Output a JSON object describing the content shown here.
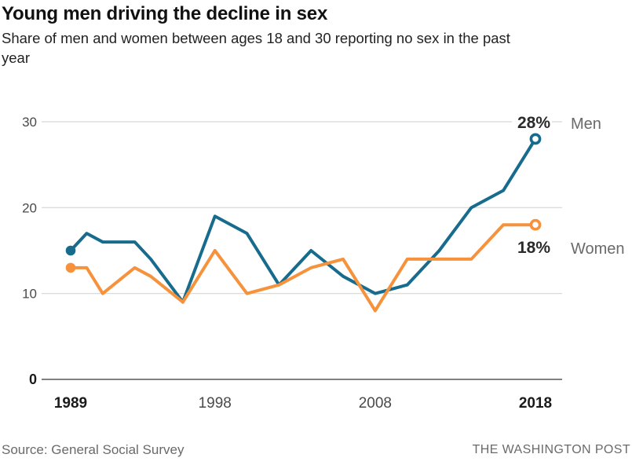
{
  "header": {
    "title": "Young men driving the decline in sex",
    "subtitle_line1": "Share of men and women between ages 18 and 30 reporting no sex in the past",
    "subtitle_line2": "year"
  },
  "footer": {
    "source": "Source: General Social Survey",
    "credit": "THE WASHINGTON POST"
  },
  "chart_data": {
    "type": "line",
    "title": "Young men driving the decline in sex",
    "subtitle": "Share of men and women between ages 18 and 30 reporting no sex in the past year",
    "x": [
      1989,
      1990,
      1991,
      1993,
      1994,
      1996,
      1998,
      2000,
      2002,
      2004,
      2006,
      2008,
      2010,
      2012,
      2014,
      2016,
      2018
    ],
    "series": [
      {
        "name": "Men",
        "color": "#176c8e",
        "end_label": "28%",
        "values": [
          15,
          17,
          16,
          16,
          14,
          9,
          19,
          17,
          11,
          15,
          12,
          10,
          11,
          15,
          20,
          22,
          28
        ]
      },
      {
        "name": "Women",
        "color": "#f6923c",
        "end_label": "18%",
        "values": [
          13,
          13,
          10,
          13,
          12,
          9,
          15,
          10,
          11,
          13,
          14,
          8,
          14,
          14,
          14,
          18,
          18
        ]
      }
    ],
    "xlabel": "",
    "ylabel": "",
    "ylim": [
      0,
      30
    ],
    "yticks": [
      0,
      10,
      20,
      30
    ],
    "xticks": [
      1989,
      1998,
      2008,
      2018
    ],
    "grid": "horizontal",
    "legend_position": "right-end-labels",
    "marker_style": {
      "start": "filled-dot",
      "end": "open-circle"
    }
  }
}
